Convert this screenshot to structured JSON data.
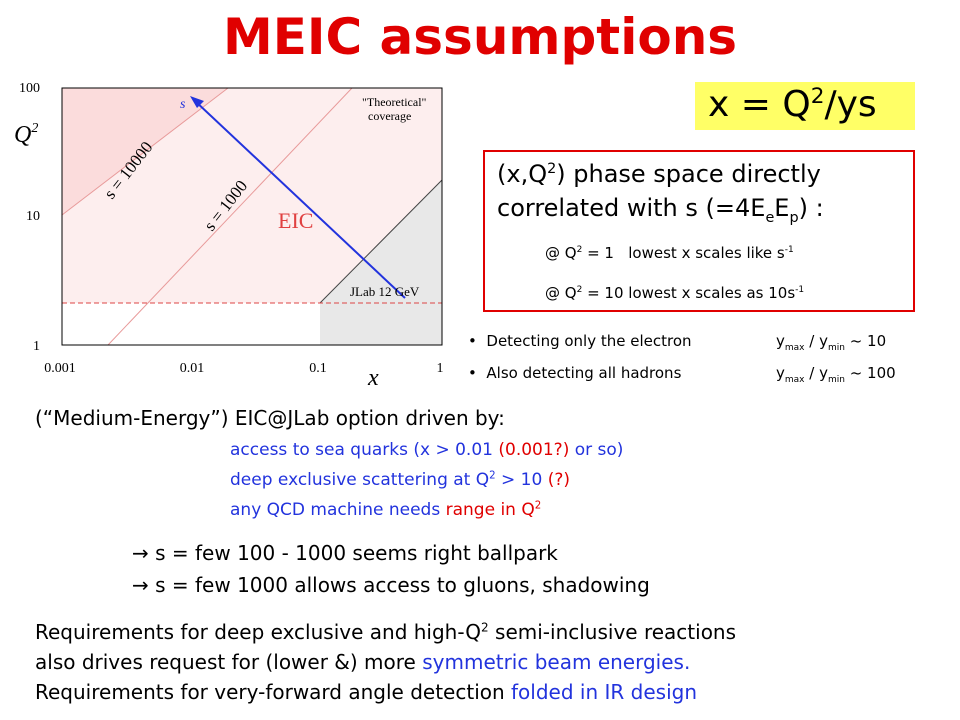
{
  "title": "MEIC assumptions",
  "plot": {
    "y_label": [
      "Q",
      "2"
    ],
    "x_label": "x",
    "yticks": [
      "100",
      "10",
      "1"
    ],
    "xticks": [
      "0.001",
      "0.01",
      "0.1",
      "1"
    ],
    "lines": [
      "s = 10000",
      "s = 1000"
    ],
    "arrow_label": "s",
    "region_labels": [
      "\"Theoretical\"",
      "coverage",
      "EIC",
      "JLab 12 GeV"
    ]
  },
  "formula": [
    "x = Q",
    "2",
    "/ys"
  ],
  "box": {
    "line1": [
      "(x,Q",
      "2",
      ") phase space directly"
    ],
    "line2": [
      "correlated with s (=4E",
      "e",
      "E",
      "p",
      ") :"
    ],
    "note1": [
      "@ Q",
      "2",
      " = 1   lowest x scales like s",
      "-1"
    ],
    "note2": [
      "@ Q",
      "2",
      " = 10 lowest x scales as 10s",
      "-1"
    ]
  },
  "bullets": [
    {
      "text": "Detecting only the electron",
      "ratio": [
        "y",
        "max",
        " / y",
        "min",
        " ~ 10"
      ]
    },
    {
      "text": "Also detecting all hadrons",
      "ratio": [
        "y",
        "max",
        " / y",
        "min",
        " ~ 100"
      ]
    }
  ],
  "intro": "(“Medium-Energy”) EIC@JLab option driven by:",
  "drivers": [
    [
      "access to sea quarks (x > 0.01 ",
      "(0.001?)",
      " or so)"
    ],
    [
      "deep exclusive scattering at Q",
      "2",
      " > 10 ",
      "(?)"
    ],
    [
      "any QCD machine needs ",
      "range in Q",
      "2"
    ]
  ],
  "conclusions": [
    "→ s = few 100 - 1000 seems right ballpark",
    "→ s = few 1000 allows access to gluons, shadowing"
  ],
  "requirements": [
    [
      "Requirements for deep exclusive and high-Q",
      "2",
      " semi-inclusive reactions"
    ],
    [
      "also drives request for (lower &) more ",
      "symmetric beam energies."
    ],
    [
      "Requirements for very-forward angle detection ",
      "folded in IR design"
    ]
  ]
}
